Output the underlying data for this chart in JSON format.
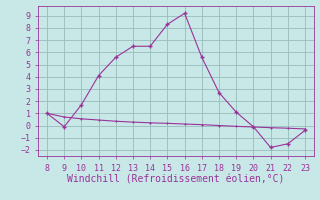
{
  "x_main": [
    8,
    9,
    10,
    11,
    12,
    13,
    14,
    15,
    16,
    17,
    18,
    19,
    20,
    21,
    22,
    23
  ],
  "y_main": [
    1.0,
    -0.1,
    1.7,
    4.1,
    5.6,
    6.5,
    6.5,
    8.3,
    9.2,
    5.6,
    2.7,
    1.1,
    -0.1,
    -1.8,
    -1.5,
    -0.4
  ],
  "x_flat": [
    8,
    9,
    10,
    11,
    12,
    13,
    14,
    15,
    16,
    17,
    18,
    19,
    20,
    21,
    22,
    23
  ],
  "y_flat": [
    1.0,
    0.7,
    0.55,
    0.45,
    0.35,
    0.28,
    0.22,
    0.18,
    0.12,
    0.07,
    0.0,
    -0.07,
    -0.12,
    -0.18,
    -0.22,
    -0.28
  ],
  "line_color": "#993399",
  "bg_color": "#c8e8e8",
  "grid_color": "#99bbbb",
  "xlabel": "Windchill (Refroidissement éolien,°C)",
  "xlim": [
    7.5,
    23.5
  ],
  "ylim": [
    -2.5,
    9.8
  ],
  "xticks": [
    8,
    9,
    10,
    11,
    12,
    13,
    14,
    15,
    16,
    17,
    18,
    19,
    20,
    21,
    22,
    23
  ],
  "yticks": [
    -2,
    -1,
    0,
    1,
    2,
    3,
    4,
    5,
    6,
    7,
    8,
    9
  ],
  "tick_fontsize": 6,
  "xlabel_fontsize": 7,
  "xlabel_color": "#993399",
  "tick_color": "#993399"
}
